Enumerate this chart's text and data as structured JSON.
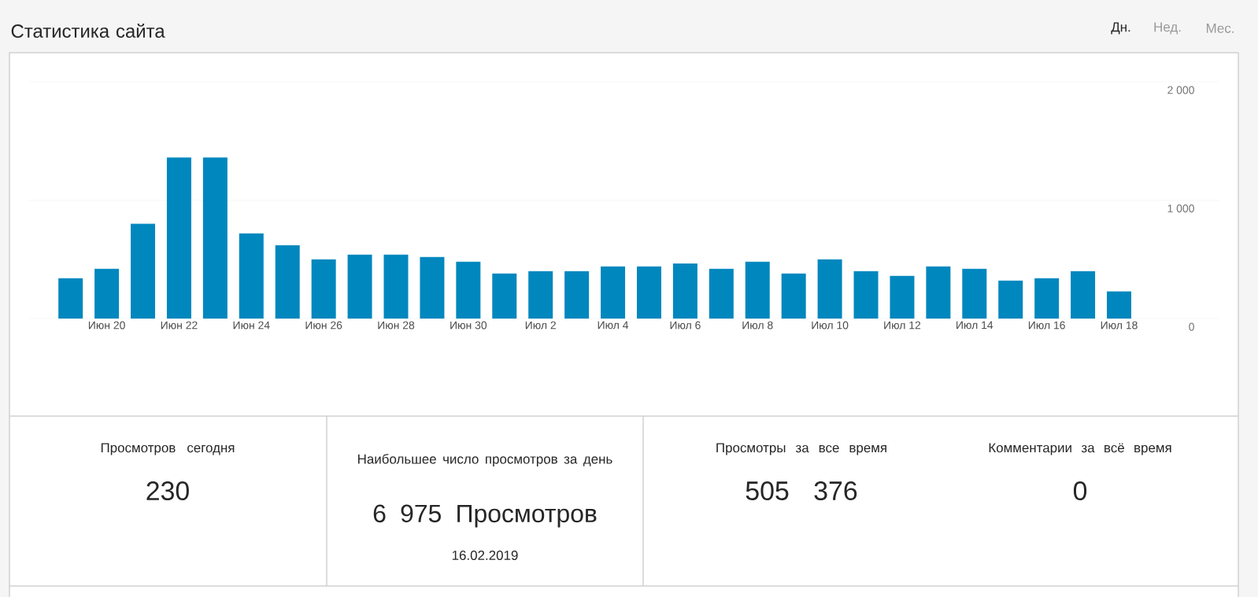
{
  "chart_data": [
    {
      "type": "bar",
      "title": "Статистика сайта",
      "annotations": [
        "Дн.",
        "Нед.",
        "Мес."
      ],
      "categories": [
        null,
        "Июн 20",
        null,
        "Июн 22",
        null,
        "Июн 24",
        null,
        "Июн 26",
        null,
        "Июн 28",
        null,
        "Июн 30",
        null,
        "Июл 2",
        null,
        "Июл 4",
        null,
        "Июл 6",
        null,
        "Июл 8",
        null,
        "Июл 10",
        null,
        "Июл 12",
        null,
        "Июл 14",
        null,
        "Июл 16",
        null,
        "Июл 18"
      ],
      "values": [
        340,
        420,
        800,
        1360,
        1360,
        720,
        620,
        500,
        540,
        540,
        520,
        480,
        380,
        400,
        400,
        440,
        440,
        465,
        420,
        480,
        380,
        500,
        400,
        360,
        440,
        420,
        320,
        340,
        400,
        230
      ],
      "color": "#0087be",
      "ylim": [
        0,
        2000
      ],
      "yticks": [
        0,
        {
          "value": 1000,
          "label": "1 000"
        },
        {
          "value": 2000,
          "label": "2 000"
        }
      ],
      "grid": "y"
    },
    {
      "type": "other",
      "annotations": [
        "Просмотров сегодня",
        "230",
        "Наибольшее число просмотров за день",
        "6 975 Просмотров",
        "16.02.2019",
        "Просмотры за все время",
        "505 376",
        "Комментарии за всё время",
        "0"
      ]
    }
  ]
}
